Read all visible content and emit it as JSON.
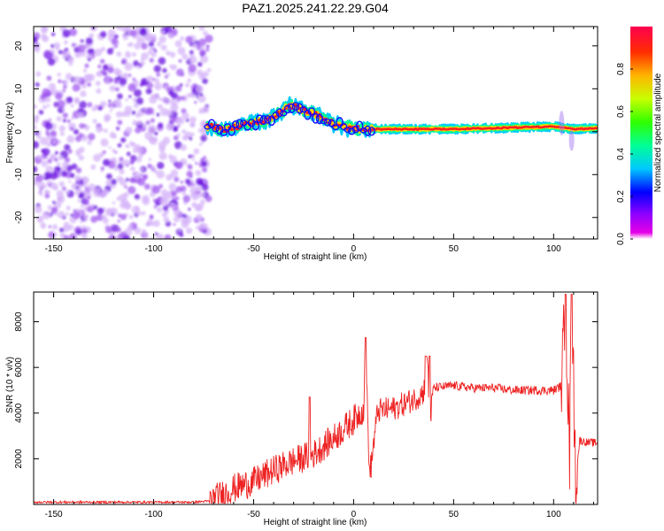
{
  "title": "PAZ1.2025.241.22.29.G04",
  "colors": {
    "snr_line": "#ee2222",
    "scatter_purple": "#7a1fe6",
    "axis": "#000000"
  },
  "chart_data": [
    {
      "type": "heatmap",
      "name": "spectrogram",
      "xlabel": "Height of straight line (km)",
      "ylabel": "Frequency (Hz)",
      "xlim": [
        -160,
        122
      ],
      "ylim": [
        -25,
        24.5
      ],
      "xticks": [
        -150,
        -100,
        -50,
        0,
        50,
        100
      ],
      "yticks": [
        -20,
        -10,
        0,
        10,
        20
      ],
      "noise_region_x": [
        -160,
        -72
      ],
      "signal_track": [
        {
          "x": -75,
          "f": 1.5
        },
        {
          "x": -65,
          "f": 0.5
        },
        {
          "x": -55,
          "f": 1.5
        },
        {
          "x": -45,
          "f": 2.5
        },
        {
          "x": -38,
          "f": 4.0
        },
        {
          "x": -32,
          "f": 6.0
        },
        {
          "x": -25,
          "f": 5.0
        },
        {
          "x": -15,
          "f": 3.0
        },
        {
          "x": -8,
          "f": 1.5
        },
        {
          "x": 0,
          "f": 0.8
        },
        {
          "x": 10,
          "f": 0.6
        },
        {
          "x": 50,
          "f": 0.6
        },
        {
          "x": 100,
          "f": 1.2
        },
        {
          "x": 110,
          "f": 0.6
        },
        {
          "x": 122,
          "f": 0.8
        }
      ],
      "colorbar": {
        "label": "Normalized spectral amplitude",
        "range": [
          0,
          1
        ],
        "ticks": [
          0.0,
          0.2,
          0.4,
          0.6,
          0.8
        ],
        "tick_labels": [
          "0.0",
          "0.2",
          "0.4",
          "0.6",
          "0.8"
        ]
      }
    },
    {
      "type": "line",
      "name": "snr",
      "xlabel": "Height of straight line (km)",
      "ylabel": "SNR (10 * v/v)",
      "xlim": [
        -160,
        122
      ],
      "ylim": [
        0,
        9300
      ],
      "xticks": [
        -150,
        -100,
        -50,
        0,
        50,
        100
      ],
      "yticks": [
        2000,
        4000,
        6000,
        8000
      ],
      "series": [
        {
          "name": "SNR",
          "points": [
            [
              -160,
              100
            ],
            [
              -140,
              100
            ],
            [
              -120,
              100
            ],
            [
              -100,
              100
            ],
            [
              -80,
              100
            ],
            [
              -72,
              150
            ],
            [
              -60,
              700
            ],
            [
              -50,
              1000
            ],
            [
              -40,
              1500
            ],
            [
              -30,
              1900
            ],
            [
              -20,
              2200
            ],
            [
              -10,
              2900
            ],
            [
              0,
              3700
            ],
            [
              5,
              4200
            ],
            [
              6,
              6800
            ],
            [
              8,
              1200
            ],
            [
              12,
              4100
            ],
            [
              20,
              4200
            ],
            [
              30,
              4600
            ],
            [
              35,
              4900
            ],
            [
              37,
              6400
            ],
            [
              38,
              3400
            ],
            [
              40,
              5100
            ],
            [
              50,
              5200
            ],
            [
              60,
              5100
            ],
            [
              70,
              5100
            ],
            [
              80,
              5000
            ],
            [
              90,
              5000
            ],
            [
              100,
              5000
            ],
            [
              104,
              5200
            ],
            [
              106,
              8900
            ],
            [
              108,
              2000
            ],
            [
              109,
              9200
            ],
            [
              111,
              1000
            ],
            [
              113,
              2800
            ],
            [
              118,
              2700
            ],
            [
              122,
              2700
            ]
          ],
          "spikes": [
            [
              -22,
              4700
            ],
            [
              6,
              7300
            ],
            [
              36,
              6500
            ],
            [
              38,
              6500
            ],
            [
              106,
              9200
            ],
            [
              109,
              9200
            ]
          ]
        }
      ]
    }
  ]
}
